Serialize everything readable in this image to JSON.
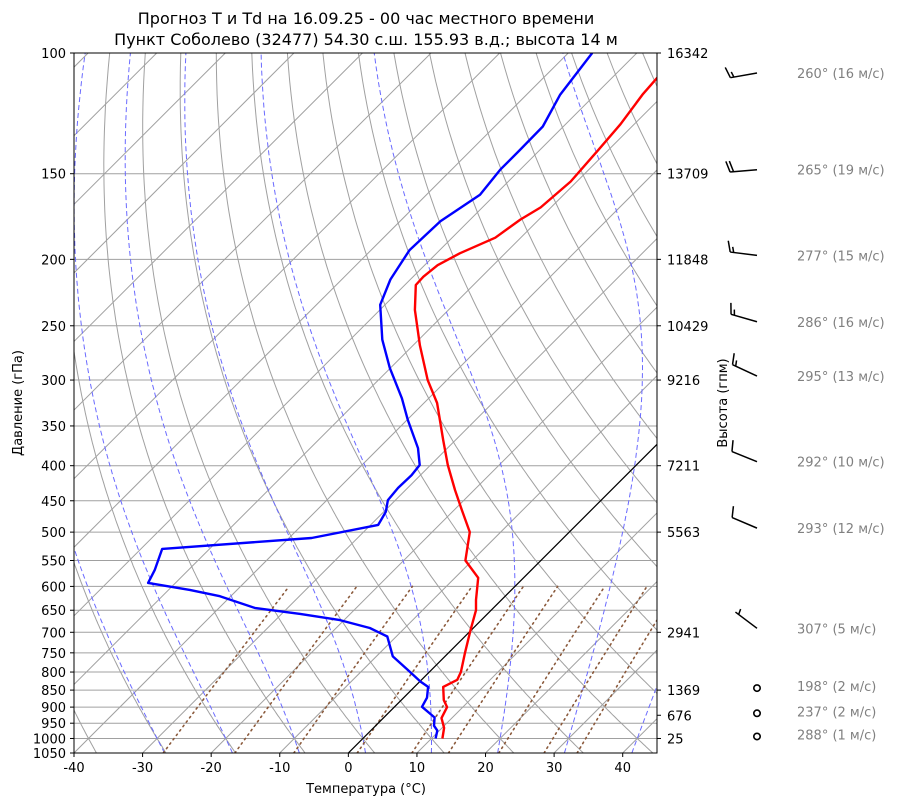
{
  "chart_data": {
    "type": "line",
    "subtype": "skew-t log-p",
    "title": [
      "Прогноз T и Td на 16.09.25 - 00 час местного времени",
      "Пункт Соболево (32477) 54.30 с.ш. 155.93 в.д.; высота 14 м"
    ],
    "xlabel": "Температура (°C)",
    "ylabel": "Давление (гПа)",
    "ylabel_right": "Высота (гпм)",
    "xlim": [
      -40,
      45
    ],
    "ylim": [
      1050,
      100
    ],
    "x_ticks": [
      -40,
      -30,
      -20,
      -10,
      0,
      10,
      20,
      30,
      40
    ],
    "p_ticks": [
      100,
      150,
      200,
      250,
      300,
      350,
      400,
      450,
      500,
      550,
      600,
      650,
      700,
      750,
      800,
      850,
      900,
      950,
      1000,
      1050
    ],
    "heights": [
      {
        "p": 100,
        "h": "16342"
      },
      {
        "p": 150,
        "h": "13709"
      },
      {
        "p": 200,
        "h": "11848"
      },
      {
        "p": 250,
        "h": "10429"
      },
      {
        "p": 300,
        "h": "9216"
      },
      {
        "p": 400,
        "h": "7211"
      },
      {
        "p": 500,
        "h": "5563"
      },
      {
        "p": 700,
        "h": "2941"
      },
      {
        "p": 850,
        "h": "1369"
      },
      {
        "p": 925,
        "h": "676"
      },
      {
        "p": 1000,
        "h": "25"
      }
    ],
    "series": [
      {
        "name": "T",
        "color": "#ff0000",
        "points": [
          [
            1000,
            11.6
          ],
          [
            965,
            10.3
          ],
          [
            934,
            8.5
          ],
          [
            900,
            7.7
          ],
          [
            879,
            6.2
          ],
          [
            841,
            4.2
          ],
          [
            821,
            5.2
          ],
          [
            800,
            4.6
          ],
          [
            750,
            2.4
          ],
          [
            695,
            -0.1
          ],
          [
            650,
            -2.2
          ],
          [
            628,
            -3.7
          ],
          [
            583,
            -6.6
          ],
          [
            550,
            -11.0
          ],
          [
            500,
            -14.5
          ],
          [
            464,
            -18.9
          ],
          [
            434,
            -22.8
          ],
          [
            399,
            -27.5
          ],
          [
            367,
            -31.8
          ],
          [
            324,
            -38.1
          ],
          [
            300,
            -42.8
          ],
          [
            267,
            -49.0
          ],
          [
            237,
            -54.9
          ],
          [
            218,
            -58.4
          ],
          [
            212,
            -58.5
          ],
          [
            204,
            -58.1
          ],
          [
            196,
            -56.6
          ],
          [
            186,
            -53.7
          ],
          [
            175,
            -52.7
          ],
          [
            168,
            -51.5
          ],
          [
            154,
            -50.9
          ],
          [
            138,
            -51.5
          ],
          [
            127,
            -52.0
          ],
          [
            115,
            -53.1
          ],
          [
            109,
            -53.4
          ],
          [
            100,
            -53.8
          ]
        ]
      },
      {
        "name": "Td",
        "color": "#0000ff",
        "points": [
          [
            1000,
            10.6
          ],
          [
            974,
            9.7
          ],
          [
            958,
            8.5
          ],
          [
            932,
            7.4
          ],
          [
            899,
            4.0
          ],
          [
            872,
            3.4
          ],
          [
            841,
            2.0
          ],
          [
            826,
            0.1
          ],
          [
            793,
            -3.6
          ],
          [
            759,
            -7.6
          ],
          [
            710,
            -11.3
          ],
          [
            690,
            -15.1
          ],
          [
            672,
            -20.6
          ],
          [
            658,
            -27.3
          ],
          [
            645,
            -34.8
          ],
          [
            620,
            -41.6
          ],
          [
            607,
            -46.9
          ],
          [
            593,
            -54.0
          ],
          [
            568,
            -54.9
          ],
          [
            529,
            -56.9
          ],
          [
            510,
            -36.7
          ],
          [
            488,
            -28.9
          ],
          [
            467,
            -29.7
          ],
          [
            449,
            -31.1
          ],
          [
            431,
            -31.4
          ],
          [
            413,
            -31.3
          ],
          [
            399,
            -31.6
          ],
          [
            377,
            -34.3
          ],
          [
            343,
            -39.9
          ],
          [
            319,
            -43.9
          ],
          [
            288,
            -50.1
          ],
          [
            262,
            -55.3
          ],
          [
            233,
            -60.7
          ],
          [
            214,
            -62.9
          ],
          [
            194,
            -64.4
          ],
          [
            176,
            -64.1
          ],
          [
            161,
            -62.2
          ],
          [
            148,
            -62.9
          ],
          [
            139,
            -62.9
          ],
          [
            128,
            -63.0
          ],
          [
            115,
            -65.1
          ],
          [
            100,
            -66.5
          ]
        ]
      }
    ],
    "winds": [
      {
        "p": 100,
        "dir": 260,
        "speed": 16,
        "label": "260° (16 м/с)"
      },
      {
        "p": 150,
        "dir": 265,
        "speed": 19,
        "label": "265° (19 м/с)"
      },
      {
        "p": 200,
        "dir": 277,
        "speed": 15,
        "label": "277° (15 м/с)"
      },
      {
        "p": 250,
        "dir": 286,
        "speed": 16,
        "label": "286° (16 м/с)"
      },
      {
        "p": 300,
        "dir": 295,
        "speed": 13,
        "label": "295° (13 м/с)"
      },
      {
        "p": 400,
        "dir": 292,
        "speed": 10,
        "label": "292° (10 м/с)"
      },
      {
        "p": 500,
        "dir": 293,
        "speed": 12,
        "label": "293° (12 м/с)"
      },
      {
        "p": 700,
        "dir": 307,
        "speed": 5,
        "label": "307° (5 м/с)"
      },
      {
        "p": 850,
        "dir": 198,
        "speed": 2,
        "label": "198° (2 м/с)"
      },
      {
        "p": 925,
        "dir": 237,
        "speed": 2,
        "label": "237° (2 м/с)"
      },
      {
        "p": 1000,
        "dir": 288,
        "speed": 1,
        "label": "288° (1 м/с)"
      }
    ],
    "background": {
      "isotherm_step": 10,
      "highlight_isotherm": 0,
      "dry_adiabats_theta_c": [
        -40,
        -30,
        -20,
        -10,
        0,
        10,
        20,
        30,
        40,
        50,
        60,
        70,
        80,
        90,
        100,
        110,
        120,
        130,
        140,
        150,
        160,
        170,
        180,
        190,
        200
      ],
      "moist_adiabats_t1000_c": [
        -30,
        -20,
        -10,
        0,
        10,
        20,
        30,
        40
      ],
      "mixing_ratios_gkg": [
        0.4,
        1,
        2,
        4,
        7,
        10,
        16,
        24,
        32
      ]
    },
    "colors": {
      "grid": "#a0a0a0",
      "moist": "#6a6aff",
      "mixing": "#8b5a3c",
      "wind_text": "#808080"
    }
  }
}
